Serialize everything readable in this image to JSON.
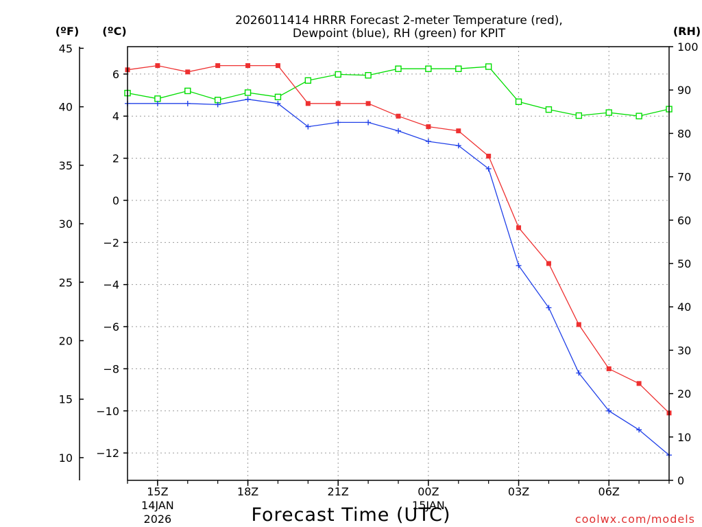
{
  "chart_data": {
    "type": "line",
    "title_line1": "2026011414 HRRR Forecast 2-meter Temperature (red),",
    "title_line2": "Dewpoint (blue), RH (green) for KPIT",
    "xlabel": "Forecast Time (UTC)",
    "credit": "coolwx.com/models",
    "units": {
      "left_f": "(ºF)",
      "left_c": "(ºC)",
      "right_rh": "(RH)"
    },
    "x_hours": [
      14,
      15,
      16,
      17,
      18,
      19,
      20,
      21,
      22,
      23,
      24,
      25,
      26,
      27,
      28,
      29,
      30,
      31,
      32
    ],
    "x_ticks": [
      {
        "hour": 15,
        "label": "15Z",
        "sub1": "14JAN",
        "sub2": "2026"
      },
      {
        "hour": 18,
        "label": "18Z"
      },
      {
        "hour": 21,
        "label": "21Z"
      },
      {
        "hour": 24,
        "label": "00Z",
        "sub1": "15JAN"
      },
      {
        "hour": 27,
        "label": "03Z"
      },
      {
        "hour": 30,
        "label": "06Z"
      }
    ],
    "xlim": [
      14,
      32
    ],
    "celsius_axis": {
      "ylim": [
        -13.3,
        7.3
      ],
      "ticks": [
        6,
        4,
        2,
        0,
        -2,
        -4,
        -6,
        -8,
        -10,
        -12
      ],
      "tick_labels": [
        "6",
        "4",
        "2",
        "0",
        "−2",
        "−4",
        "−6",
        "−8",
        "−10",
        "−12"
      ]
    },
    "fahrenheit_axis": {
      "ticks": [
        45,
        40,
        35,
        30,
        25,
        20,
        15,
        10
      ]
    },
    "rh_axis": {
      "ylim": [
        0,
        100
      ],
      "ticks": [
        100,
        90,
        80,
        70,
        60,
        50,
        40,
        30,
        20,
        10,
        0
      ]
    },
    "colors": {
      "temperature": "#ee3030",
      "dewpoint": "#2040e8",
      "rh": "#00dd00"
    },
    "series": [
      {
        "name": "Temperature",
        "axis": "celsius",
        "marker": "filled-square",
        "values": [
          6.2,
          6.4,
          6.1,
          6.4,
          6.4,
          6.4,
          4.6,
          4.6,
          4.6,
          4.0,
          3.5,
          3.3,
          2.1,
          -1.3,
          -3.0,
          -5.9,
          -8.0,
          -8.7,
          -10.1
        ]
      },
      {
        "name": "Dewpoint",
        "axis": "celsius",
        "marker": "plus",
        "values": [
          4.6,
          4.6,
          4.6,
          4.55,
          4.8,
          4.6,
          3.5,
          3.7,
          3.7,
          3.3,
          2.8,
          2.6,
          1.5,
          -3.1,
          -5.1,
          -8.2,
          -10.0,
          -10.9,
          -12.1
        ]
      },
      {
        "name": "RH",
        "axis": "rh",
        "marker": "open-square",
        "values": [
          89.3,
          88.0,
          89.8,
          87.7,
          89.4,
          88.4,
          92.2,
          93.6,
          93.4,
          94.9,
          94.9,
          94.9,
          95.4,
          87.3,
          85.5,
          84.1,
          84.8,
          84.0,
          85.6
        ]
      }
    ]
  }
}
